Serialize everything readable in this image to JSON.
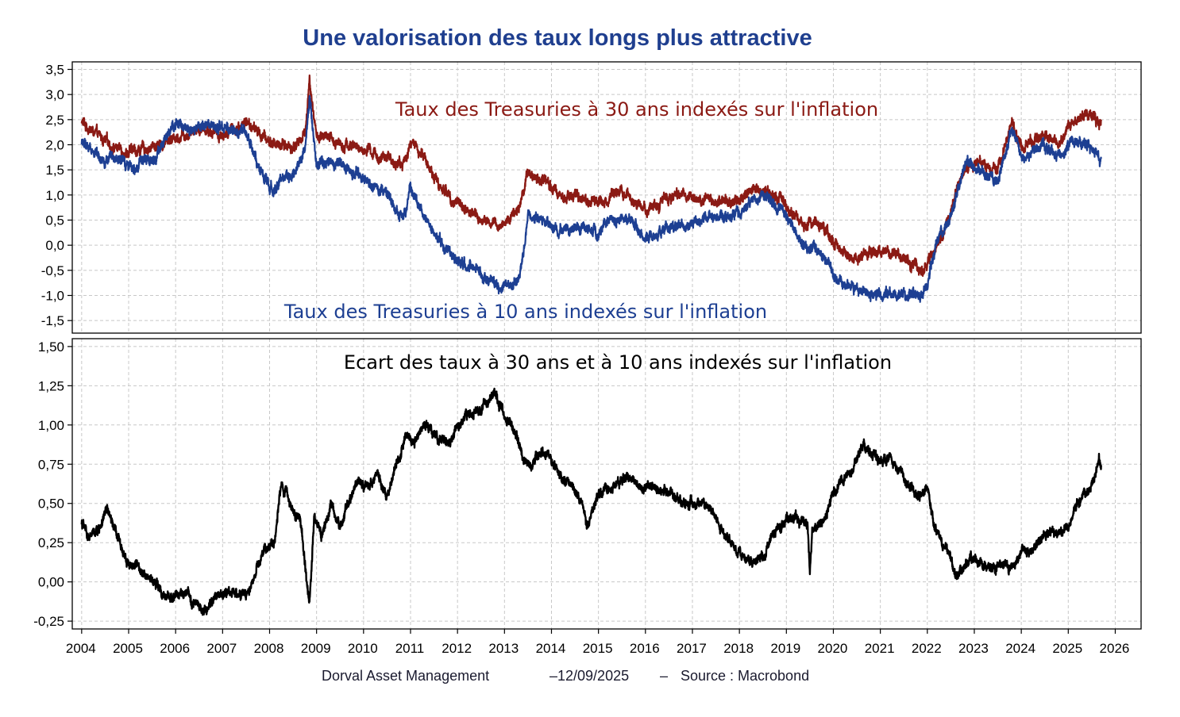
{
  "title": "Une valorisation des taux longs plus attractive",
  "colors": {
    "title": "#1f3f8f",
    "series_30y": "#8b1a14",
    "series_10y": "#1d3f92",
    "spread": "#000000",
    "grid": "#c8c8c8"
  },
  "footer": {
    "company": "Dorval Asset Management",
    "date": "–12/09/2025",
    "separator": "–",
    "source": "Source : Macrobond"
  },
  "chart_data": [
    {
      "type": "line",
      "panel": "top",
      "ylim": [
        -1.75,
        3.65
      ],
      "yticks": [
        -1.5,
        -1.0,
        -0.5,
        0.0,
        0.5,
        1.0,
        1.5,
        2.0,
        2.5,
        3.0,
        3.5
      ],
      "ytick_labels": [
        "-1,5",
        "-1,0",
        "-0,5",
        "0,0",
        "0,5",
        "1,0",
        "1,5",
        "2,0",
        "2,5",
        "3,0",
        "3,5"
      ],
      "grid": true,
      "series": [
        {
          "name": "Taux des Treasuries à 30 ans indexés sur l'inflation",
          "color": "#8b1a14",
          "x": [
            2004.0,
            2004.5,
            2005.0,
            2005.5,
            2006.0,
            2006.5,
            2007.0,
            2007.5,
            2008.0,
            2008.5,
            2008.75,
            2008.85,
            2009.0,
            2009.5,
            2010.0,
            2010.5,
            2010.85,
            2011.0,
            2011.3,
            2011.6,
            2012.0,
            2012.5,
            2012.9,
            2013.3,
            2013.5,
            2013.9,
            2014.2,
            2014.5,
            2015.0,
            2015.5,
            2016.0,
            2016.5,
            2017.0,
            2017.5,
            2018.0,
            2018.5,
            2018.9,
            2019.3,
            2019.6,
            2020.0,
            2020.2,
            2020.5,
            2021.0,
            2021.5,
            2021.9,
            2022.2,
            2022.5,
            2022.8,
            2023.0,
            2023.5,
            2023.8,
            2024.0,
            2024.5,
            2024.8,
            2025.0,
            2025.3,
            2025.5,
            2025.7
          ],
          "y": [
            2.45,
            2.05,
            1.85,
            1.95,
            2.15,
            2.35,
            2.2,
            2.45,
            2.05,
            1.95,
            2.2,
            3.3,
            2.15,
            2.05,
            1.9,
            1.7,
            1.6,
            2.05,
            1.75,
            1.2,
            0.85,
            0.5,
            0.35,
            0.75,
            1.45,
            1.3,
            1.0,
            0.95,
            0.85,
            1.15,
            0.7,
            0.95,
            0.95,
            0.85,
            0.95,
            1.1,
            0.95,
            0.45,
            0.5,
            0.05,
            -0.2,
            -0.3,
            -0.1,
            -0.3,
            -0.5,
            0.0,
            0.6,
            1.6,
            1.65,
            1.5,
            2.45,
            1.95,
            2.15,
            2.0,
            2.45,
            2.55,
            2.6,
            2.45
          ]
        },
        {
          "name": "Taux des Treasuries à 10 ans indexés sur l'inflation",
          "color": "#1d3f92",
          "x": [
            2004.0,
            2004.5,
            2005.0,
            2005.5,
            2006.0,
            2006.5,
            2007.0,
            2007.5,
            2008.0,
            2008.5,
            2008.75,
            2008.85,
            2009.0,
            2009.5,
            2010.0,
            2010.5,
            2010.85,
            2011.0,
            2011.3,
            2011.6,
            2012.0,
            2012.5,
            2012.9,
            2013.3,
            2013.5,
            2013.9,
            2014.2,
            2014.5,
            2015.0,
            2015.5,
            2016.0,
            2016.5,
            2017.0,
            2017.5,
            2018.0,
            2018.5,
            2018.9,
            2019.3,
            2019.6,
            2020.0,
            2020.2,
            2020.5,
            2021.0,
            2021.5,
            2021.9,
            2022.2,
            2022.5,
            2022.8,
            2023.0,
            2023.5,
            2023.8,
            2024.0,
            2024.5,
            2024.8,
            2025.0,
            2025.3,
            2025.5,
            2025.7
          ],
          "y": [
            2.05,
            1.7,
            1.6,
            1.7,
            2.4,
            2.35,
            2.3,
            2.2,
            1.1,
            1.45,
            1.85,
            3.0,
            1.6,
            1.6,
            1.35,
            1.0,
            0.45,
            1.1,
            0.55,
            0.1,
            -0.3,
            -0.6,
            -0.85,
            -0.75,
            0.55,
            0.5,
            0.3,
            0.35,
            0.25,
            0.65,
            0.1,
            0.35,
            0.45,
            0.55,
            0.65,
            1.0,
            0.75,
            0.05,
            0.0,
            -0.5,
            -0.75,
            -0.95,
            -1.0,
            -0.95,
            -1.05,
            0.0,
            0.55,
            1.6,
            1.6,
            1.3,
            2.3,
            1.7,
            2.0,
            1.75,
            2.0,
            2.05,
            1.95,
            1.7
          ]
        }
      ]
    },
    {
      "type": "line",
      "panel": "bottom",
      "ylim": [
        -0.3,
        1.55
      ],
      "yticks": [
        -0.25,
        0.0,
        0.25,
        0.5,
        0.75,
        1.0,
        1.25,
        1.5
      ],
      "ytick_labels": [
        "-0,25",
        "0,00",
        "0,25",
        "0,50",
        "0,75",
        "1,00",
        "1,25",
        "1,50"
      ],
      "grid": true,
      "series": [
        {
          "name": "Ecart des taux à 30 ans et à 10 ans indexés sur l'inflation",
          "color": "#000000",
          "x": [
            2004.0,
            2004.15,
            2004.35,
            2004.55,
            2004.8,
            2005.0,
            2005.3,
            2005.6,
            2005.8,
            2006.0,
            2006.3,
            2006.6,
            2006.9,
            2007.2,
            2007.5,
            2007.7,
            2007.9,
            2008.1,
            2008.25,
            2008.45,
            2008.65,
            2008.75,
            2008.85,
            2008.95,
            2009.1,
            2009.3,
            2009.5,
            2009.7,
            2009.9,
            2010.1,
            2010.3,
            2010.5,
            2010.7,
            2010.9,
            2011.1,
            2011.3,
            2011.5,
            2011.8,
            2012.0,
            2012.2,
            2012.5,
            2012.75,
            2012.9,
            2013.0,
            2013.3,
            2013.5,
            2013.8,
            2014.1,
            2014.4,
            2014.65,
            2014.75,
            2015.0,
            2015.3,
            2015.6,
            2015.9,
            2016.2,
            2016.5,
            2016.8,
            2017.1,
            2017.4,
            2017.7,
            2017.9,
            2018.1,
            2018.3,
            2018.5,
            2018.7,
            2019.0,
            2019.2,
            2019.45,
            2019.5,
            2019.55,
            2019.8,
            2020.0,
            2020.2,
            2020.4,
            2020.6,
            2020.9,
            2021.0,
            2021.2,
            2021.4,
            2021.6,
            2021.8,
            2022.0,
            2022.15,
            2022.3,
            2022.45,
            2022.6,
            2022.8,
            2023.0,
            2023.2,
            2023.4,
            2023.6,
            2023.8,
            2024.0,
            2024.2,
            2024.4,
            2024.6,
            2024.8,
            2025.0,
            2025.2,
            2025.4,
            2025.55,
            2025.65,
            2025.7
          ],
          "y": [
            0.38,
            0.28,
            0.33,
            0.45,
            0.25,
            0.12,
            0.08,
            -0.02,
            -0.12,
            -0.08,
            -0.1,
            -0.2,
            -0.08,
            -0.05,
            -0.1,
            0.05,
            0.2,
            0.25,
            0.62,
            0.5,
            0.4,
            0.12,
            -0.15,
            0.42,
            0.3,
            0.5,
            0.35,
            0.55,
            0.65,
            0.6,
            0.7,
            0.55,
            0.75,
            0.95,
            0.9,
            1.0,
            0.95,
            0.85,
            1.0,
            1.05,
            1.1,
            1.2,
            1.15,
            1.05,
            0.9,
            0.7,
            0.85,
            0.7,
            0.62,
            0.5,
            0.35,
            0.55,
            0.62,
            0.65,
            0.62,
            0.6,
            0.55,
            0.5,
            0.5,
            0.45,
            0.3,
            0.22,
            0.15,
            0.12,
            0.15,
            0.3,
            0.38,
            0.4,
            0.35,
            0.08,
            0.35,
            0.4,
            0.55,
            0.65,
            0.7,
            0.85,
            0.8,
            0.75,
            0.8,
            0.72,
            0.6,
            0.55,
            0.6,
            0.35,
            0.25,
            0.2,
            0.05,
            0.12,
            0.15,
            0.1,
            0.08,
            0.12,
            0.1,
            0.18,
            0.2,
            0.25,
            0.32,
            0.3,
            0.35,
            0.5,
            0.55,
            0.65,
            0.8,
            0.75
          ]
        }
      ]
    }
  ],
  "xaxis": {
    "range": [
      2003.8,
      2026.55
    ],
    "ticks": [
      2004,
      2005,
      2006,
      2007,
      2008,
      2009,
      2010,
      2011,
      2012,
      2013,
      2014,
      2015,
      2016,
      2017,
      2018,
      2019,
      2020,
      2021,
      2022,
      2023,
      2024,
      2025,
      2026
    ],
    "tick_labels": [
      "2004",
      "2005",
      "2006",
      "2007",
      "2008",
      "2009",
      "2010",
      "2011",
      "2012",
      "2013",
      "2014",
      "2015",
      "2016",
      "2017",
      "2018",
      "2019",
      "2020",
      "2021",
      "2022",
      "2023",
      "2024",
      "2025",
      "2026"
    ]
  }
}
